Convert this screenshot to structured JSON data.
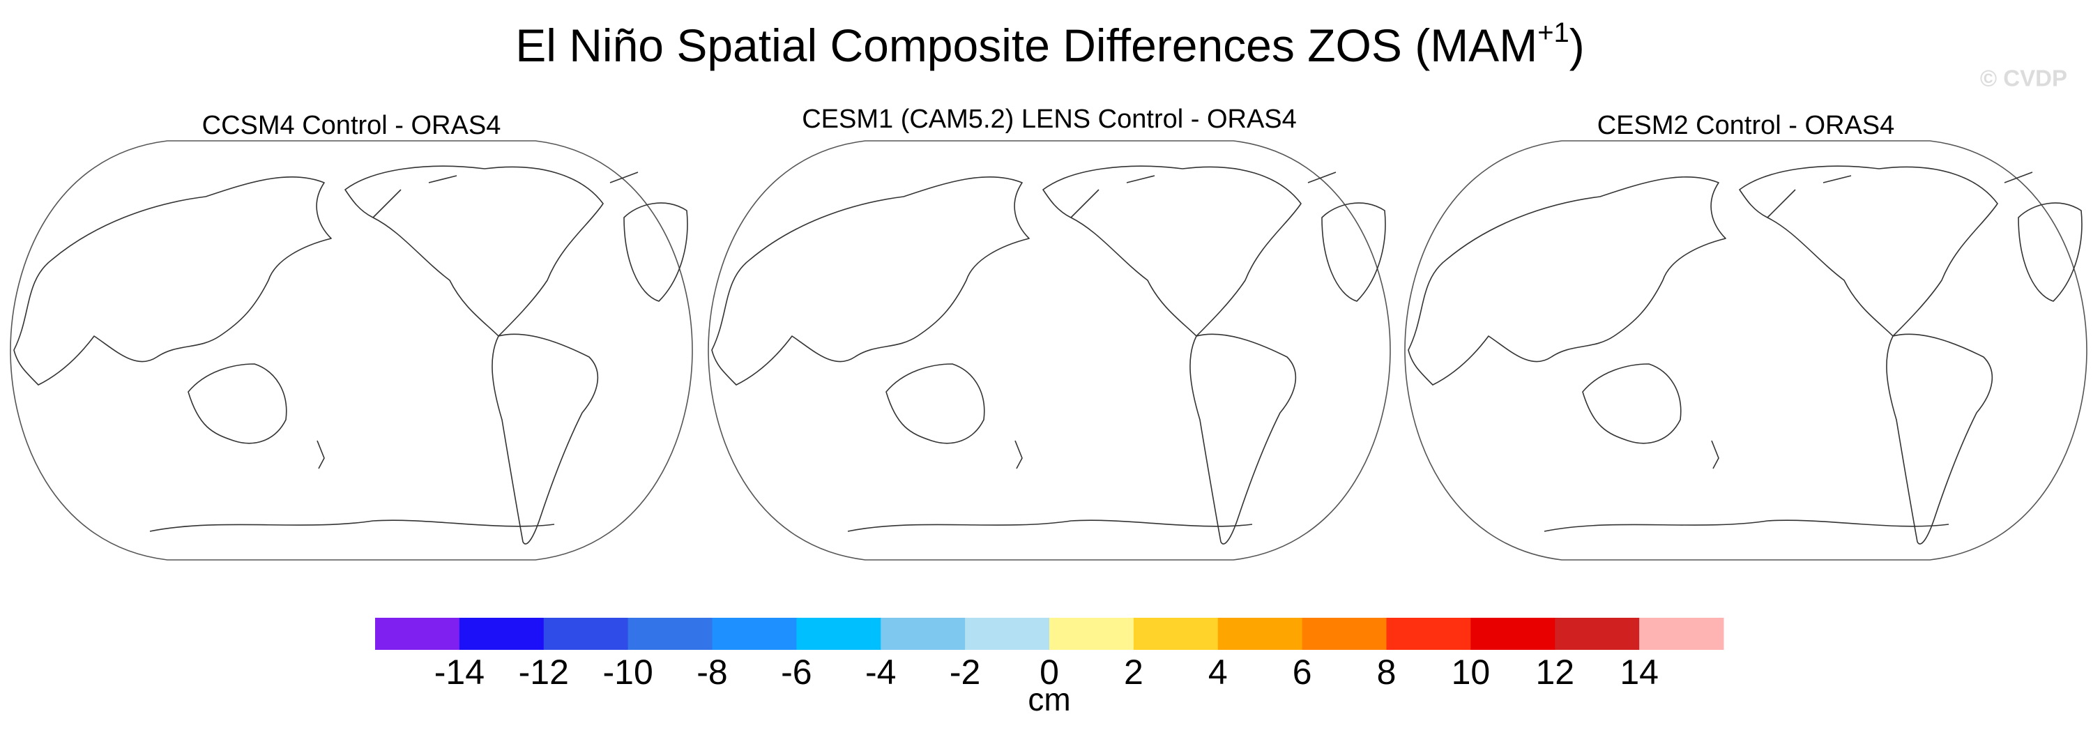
{
  "title": {
    "text": "El Niño Spatial Composite Differences ZOS (MAM",
    "superscript": "+1",
    "suffix": ")"
  },
  "watermark": "© CVDP",
  "panels": [
    {
      "title": "CCSM4 Control - ORAS4"
    },
    {
      "title": "CESM1 (CAM5.2) LENS Control - ORAS4"
    },
    {
      "title": "CESM2 Control - ORAS4"
    }
  ],
  "colorbar": {
    "colors": [
      "#7f1ff0",
      "#1c10f8",
      "#2f4be8",
      "#3375e8",
      "#1e90ff",
      "#00bfff",
      "#7ec8f0",
      "#b4e0f4",
      "#fff68f",
      "#ffd32a",
      "#ffa500",
      "#ff7f00",
      "#ff3010",
      "#e80000",
      "#d02020",
      "#ffb4b4"
    ],
    "ticks": [
      -14,
      -12,
      -10,
      -8,
      -6,
      -4,
      -2,
      0,
      2,
      4,
      6,
      8,
      10,
      12,
      14
    ],
    "label": "cm"
  }
}
